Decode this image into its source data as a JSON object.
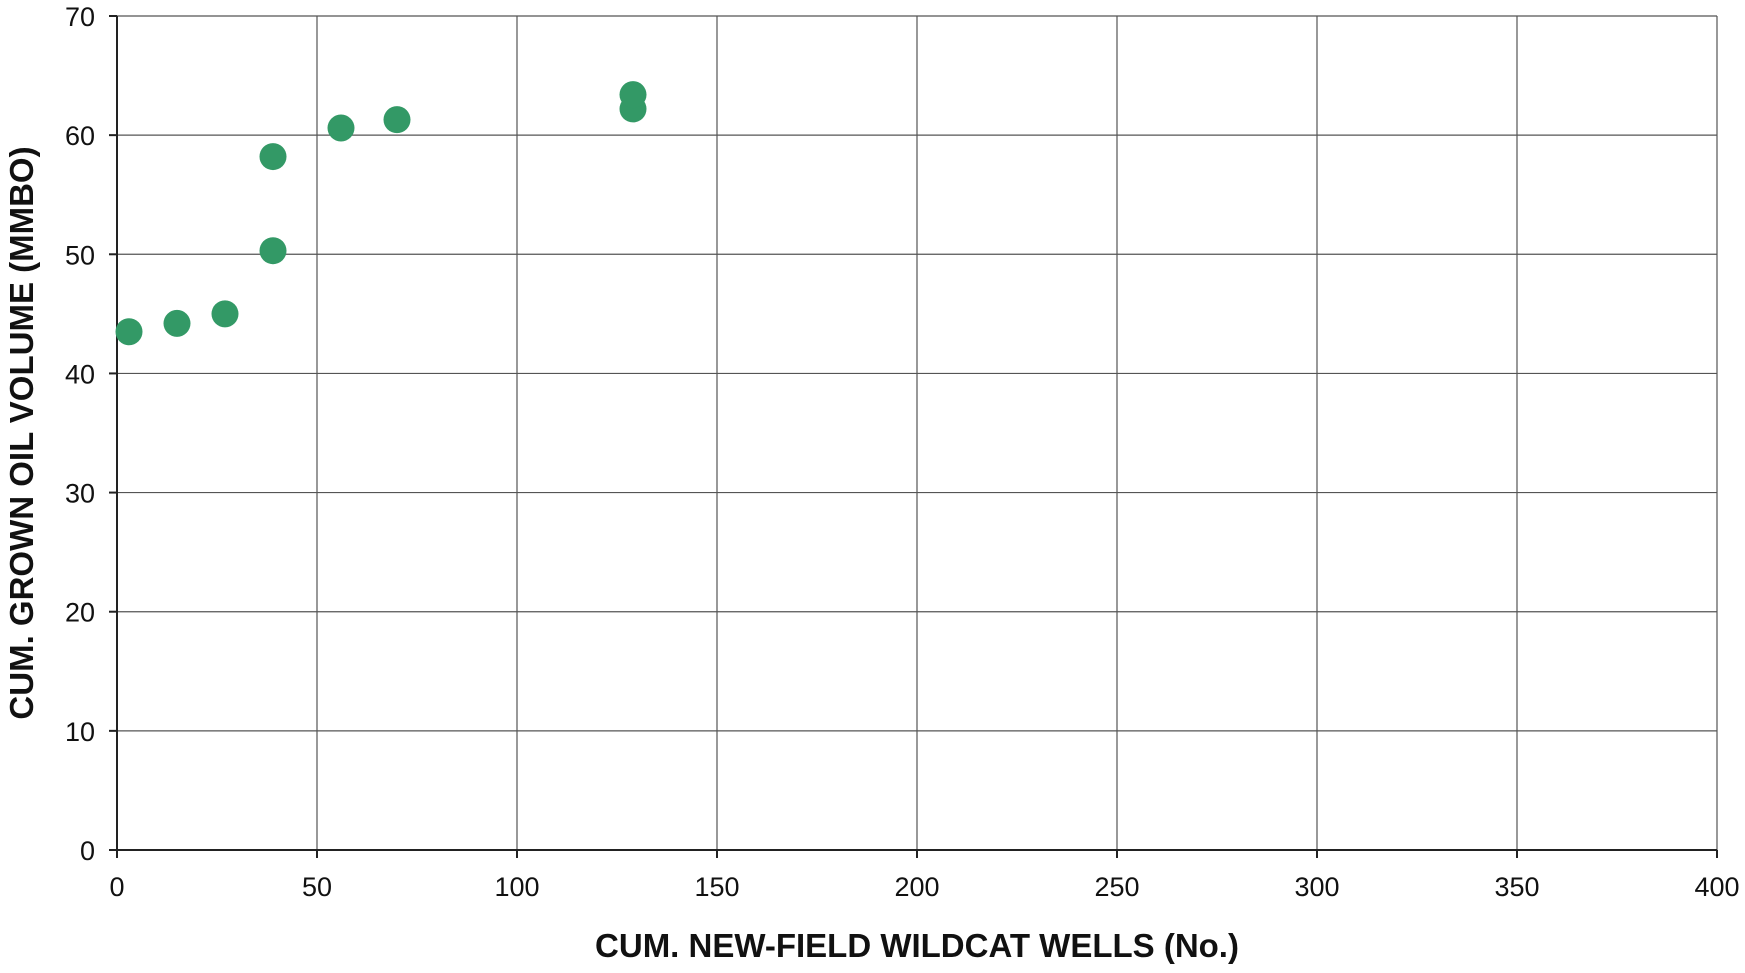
{
  "chart_data": {
    "type": "scatter",
    "title": "",
    "xlabel": "CUM. NEW-FIELD WILDCAT WELLS (No.)",
    "ylabel": "CUM. GROWN OIL VOLUME (MMBO)",
    "xlim": [
      0,
      400
    ],
    "ylim": [
      0,
      70
    ],
    "xticks": [
      0,
      50,
      100,
      150,
      200,
      250,
      300,
      350,
      400
    ],
    "yticks": [
      0,
      10,
      20,
      30,
      40,
      50,
      60,
      70
    ],
    "grid": true,
    "legend": "none",
    "series": [
      {
        "color": "#339966",
        "points": [
          {
            "x": 3,
            "y": 43.5
          },
          {
            "x": 15,
            "y": 44.2
          },
          {
            "x": 27,
            "y": 45.0
          },
          {
            "x": 39,
            "y": 50.3
          },
          {
            "x": 39,
            "y": 58.2
          },
          {
            "x": 56,
            "y": 60.6
          },
          {
            "x": 70,
            "y": 61.3
          },
          {
            "x": 129,
            "y": 62.2
          },
          {
            "x": 129,
            "y": 63.4
          }
        ]
      }
    ]
  }
}
